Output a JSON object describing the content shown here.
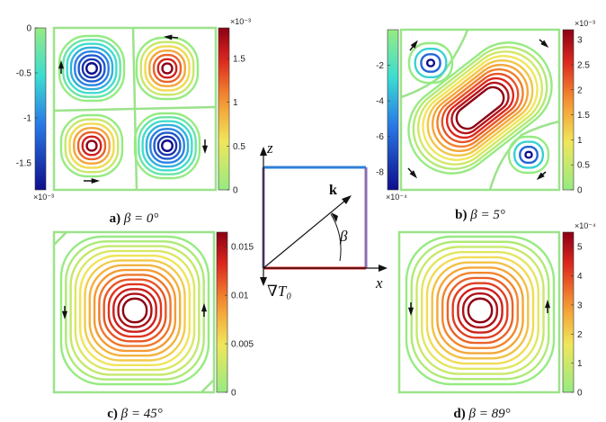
{
  "panels": [
    {
      "id": "a",
      "caption_tag": "a)",
      "caption_math": "β = 0°",
      "colorbars": [
        {
          "side": "left",
          "ticks": [
            "0",
            "-0.5",
            "-1",
            "-1.5"
          ],
          "tick_values": [
            0,
            -0.5,
            -1,
            -1.5
          ],
          "range": [
            -1.8,
            0
          ],
          "exponent": "×10⁻³",
          "exponent_pos": "bottom",
          "colormap": "cool"
        },
        {
          "side": "right",
          "ticks": [
            "1.5",
            "1",
            "0.5",
            "0"
          ],
          "tick_values": [
            1.5,
            1,
            0.5,
            0
          ],
          "range": [
            0,
            1.85
          ],
          "exponent": "×10⁻³",
          "exponent_pos": "top",
          "colormap": "warm"
        }
      ]
    },
    {
      "id": "b",
      "caption_tag": "b)",
      "caption_math": "β = 5°",
      "colorbars": [
        {
          "side": "left",
          "ticks": [
            "-2",
            "-4",
            "-6",
            "-8"
          ],
          "tick_values": [
            -2,
            -4,
            -6,
            -8
          ],
          "range": [
            -9,
            0
          ],
          "exponent": "×10⁻⁴",
          "exponent_pos": "bottom",
          "colormap": "cool"
        },
        {
          "side": "right",
          "ticks": [
            "3",
            "2.5",
            "2",
            "1.5",
            "1",
            "0.5",
            "0"
          ],
          "tick_values": [
            3,
            2.5,
            2,
            1.5,
            1,
            0.5,
            0
          ],
          "range": [
            0,
            3.2
          ],
          "exponent": "×10⁻³",
          "exponent_pos": "top",
          "colormap": "warm"
        }
      ]
    },
    {
      "id": "c",
      "caption_tag": "c)",
      "caption_math": "β = 45°",
      "colorbars": [
        {
          "side": "right",
          "ticks": [
            "0.015",
            "0.01",
            "0.005",
            "0"
          ],
          "tick_values": [
            0.015,
            0.01,
            0.005,
            0
          ],
          "range": [
            0,
            0.0165
          ],
          "exponent": "",
          "exponent_pos": "top",
          "colormap": "warm"
        }
      ]
    },
    {
      "id": "d",
      "caption_tag": "d)",
      "caption_math": "β = 89°",
      "colorbars": [
        {
          "side": "right",
          "ticks": [
            "5",
            "4",
            "3",
            "2",
            "1",
            "0"
          ],
          "tick_values": [
            5,
            4,
            3,
            2,
            1,
            0
          ],
          "range": [
            0,
            5.5
          ],
          "exponent": "×10⁻⁴",
          "exponent_pos": "top",
          "colormap": "warm"
        }
      ]
    }
  ],
  "schematic": {
    "z_label": "z",
    "x_label": "x",
    "k_label": "k",
    "beta_label": "β",
    "gradient_label": "∇T₀",
    "top_wall_color": "#2f7fd6",
    "bottom_wall_color": "#e82020"
  },
  "colors": {
    "boundary": "#9be38a",
    "arrow": "#111111"
  }
}
